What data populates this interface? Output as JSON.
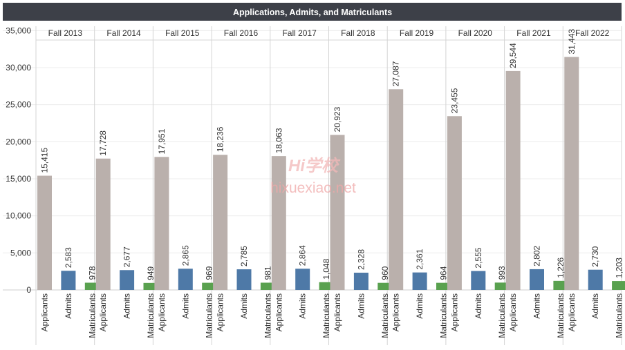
{
  "chart_data": {
    "type": "bar",
    "title": "Applications, Admits, and Matriculants",
    "xlabel": "",
    "ylabel": "",
    "ylim": [
      0,
      37500
    ],
    "yticks": [
      0,
      5000,
      10000,
      15000,
      20000,
      25000,
      30000,
      35000
    ],
    "ytick_labels": [
      "0",
      "5,000",
      "10,000",
      "15,000",
      "20,000",
      "25,000",
      "30,000",
      "35,000"
    ],
    "grid": true,
    "groups": [
      "Fall 2013",
      "Fall 2014",
      "Fall 2015",
      "Fall 2016",
      "Fall 2017",
      "Fall 2018",
      "Fall 2019",
      "Fall 2020",
      "Fall 2021",
      "Fall 2022"
    ],
    "series": [
      {
        "name": "Applicants",
        "color": "#bab0ac",
        "values": [
          15415,
          17728,
          17951,
          18236,
          18063,
          20923,
          27087,
          23455,
          29544,
          31443
        ],
        "labels": [
          "15,415",
          "17,728",
          "17,951",
          "18,236",
          "18,063",
          "20,923",
          "27,087",
          "23,455",
          "29,544",
          "31,443"
        ]
      },
      {
        "name": "Admits",
        "color": "#4e79a7",
        "values": [
          2583,
          2677,
          2865,
          2785,
          2864,
          2328,
          2361,
          2555,
          2802,
          2730
        ],
        "labels": [
          "2,583",
          "2,677",
          "2,865",
          "2,785",
          "2,864",
          "2,328",
          "2,361",
          "2,555",
          "2,802",
          "2,730"
        ]
      },
      {
        "name": "Matriculants",
        "color": "#59a14f",
        "values": [
          978,
          949,
          969,
          981,
          1048,
          960,
          964,
          993,
          1226,
          1203
        ],
        "labels": [
          "978",
          "949",
          "969",
          "981",
          "1,048",
          "960",
          "964",
          "993",
          "1,226",
          "1,203"
        ]
      }
    ]
  },
  "watermark": {
    "text1": "Hi学校",
    "text2": "hixuexiao.net"
  },
  "colors": {
    "title_bar": "#3d4048",
    "title_text": "#ffffff",
    "grid": "#ececec",
    "divider": "#d4d4d4",
    "axis_text": "#333333"
  }
}
